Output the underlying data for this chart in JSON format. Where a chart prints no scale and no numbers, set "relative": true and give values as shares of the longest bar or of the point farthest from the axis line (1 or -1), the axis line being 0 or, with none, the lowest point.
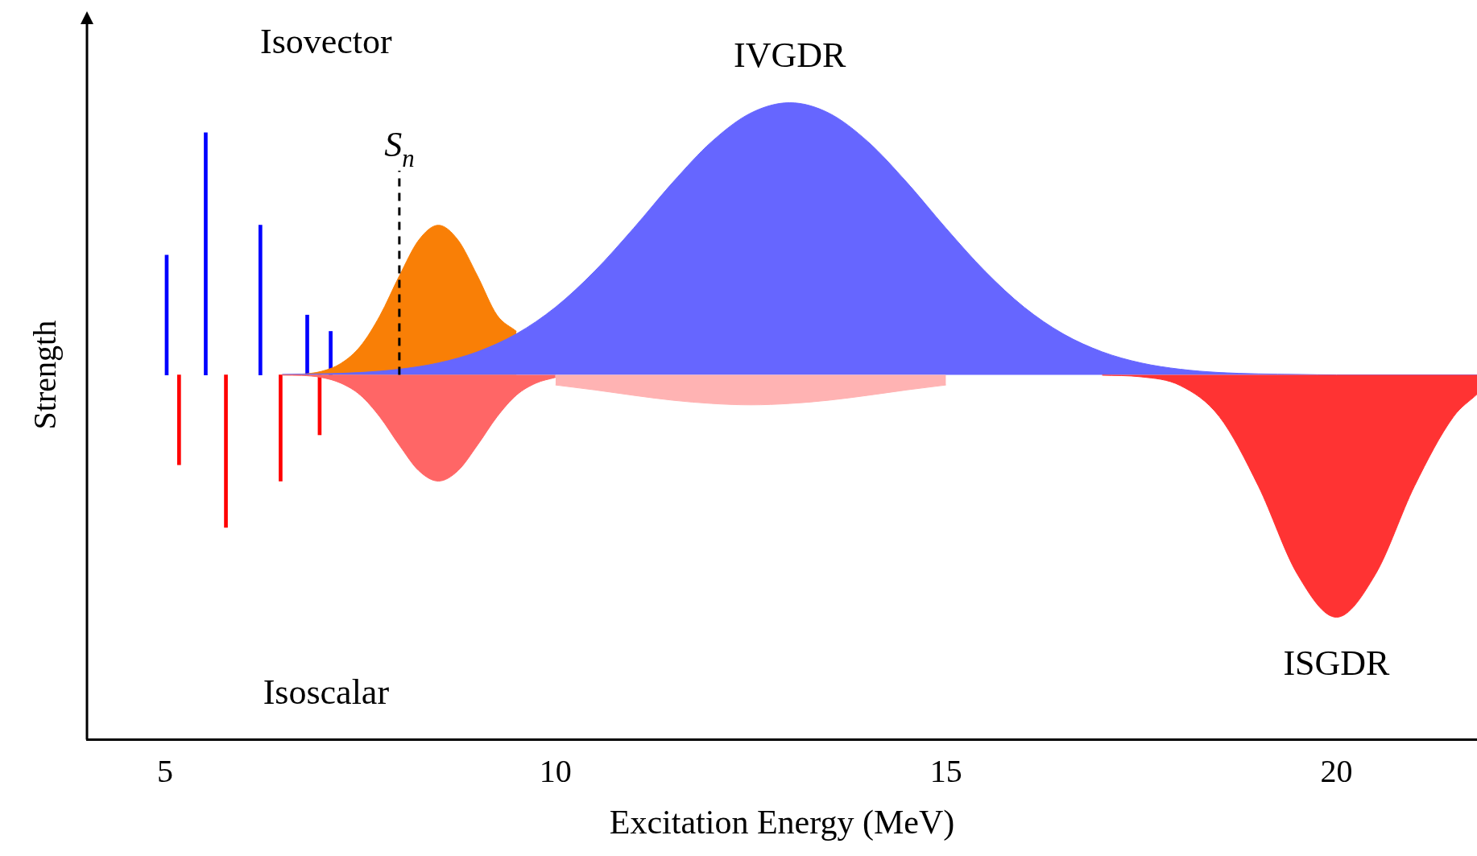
{
  "chart_data": {
    "type": "area",
    "relative": true,
    "xlabel": "Excitation Energy (MeV)",
    "ylabel": "Strength",
    "xlim": [
      4,
      21.8
    ],
    "xticks": [
      5,
      10,
      15,
      20
    ],
    "grid": false,
    "legend": false,
    "series": [
      {
        "type": "bar",
        "color": "#0000ff",
        "x": [
          5.0,
          5.5,
          6.2,
          6.8,
          7.1
        ],
        "values": [
          0.44,
          0.89,
          0.55,
          0.22,
          0.16
        ]
      },
      {
        "type": "bar",
        "color": "#ff0000",
        "x": [
          5.2,
          5.8,
          6.5,
          7.0
        ],
        "values": [
          -0.33,
          -0.56,
          -0.39,
          -0.22
        ]
      },
      {
        "type": "area",
        "color": "#f97f06",
        "x": [
          6.5,
          6.75,
          7,
          7.25,
          7.5,
          7.75,
          8,
          8.25,
          8.5,
          8.75,
          9,
          9.25,
          9.5
        ],
        "values": [
          0.001,
          0.003,
          0.013,
          0.042,
          0.105,
          0.217,
          0.364,
          0.496,
          0.55,
          0.496,
          0.364,
          0.22,
          0.16
        ]
      },
      {
        "color": "#6666ff",
        "x": [
          6.5,
          7,
          7.5,
          8,
          8.5,
          9,
          9.5,
          10,
          10.5,
          11,
          11.5,
          12,
          12.5,
          13,
          13.5,
          14,
          14.5,
          15,
          15.5,
          16,
          16.5,
          17,
          17.5,
          18,
          18.5,
          19,
          19.5,
          20,
          21.8
        ],
        "values": [
          0.002,
          0.004,
          0.009,
          0.021,
          0.044,
          0.085,
          0.151,
          0.249,
          0.381,
          0.539,
          0.707,
          0.857,
          0.962,
          1,
          0.962,
          0.857,
          0.707,
          0.539,
          0.381,
          0.249,
          0.151,
          0.085,
          0.044,
          0.021,
          0.009,
          0.004,
          0.002,
          0,
          0
        ]
      },
      {
        "color": "#ff6666",
        "x": [
          6.5,
          6.75,
          7,
          7.25,
          7.5,
          7.75,
          8,
          8.25,
          8.5,
          8.75,
          9,
          9.25,
          9.5,
          9.75,
          10
        ],
        "values": [
          -0.001,
          -0.002,
          -0.009,
          -0.03,
          -0.074,
          -0.154,
          -0.258,
          -0.352,
          -0.39,
          -0.352,
          -0.258,
          -0.154,
          -0.074,
          -0.03,
          -0.009
        ]
      },
      {
        "color": "#ffb3b3",
        "x": [
          10,
          10.5,
          11,
          11.5,
          12,
          12.5,
          13,
          13.5,
          14,
          14.5,
          15
        ],
        "values": [
          -0.037,
          -0.055,
          -0.075,
          -0.093,
          -0.105,
          -0.11,
          -0.105,
          -0.093,
          -0.075,
          -0.055,
          -0.037
        ]
      },
      {
        "color": "#ff3333",
        "x": [
          17,
          17.5,
          18,
          18.5,
          19,
          19.5,
          20,
          20.5,
          21,
          21.5,
          21.8
        ],
        "values": [
          -0.001,
          -0.007,
          -0.039,
          -0.153,
          -0.408,
          -0.732,
          -0.89,
          -0.732,
          -0.408,
          -0.153,
          -0.071
        ]
      }
    ],
    "ref_lines": [
      {
        "axis": "x",
        "value": 8,
        "label": "S$_{n}$",
        "line_style": "dashed",
        "color": "#000000"
      }
    ],
    "annotations": [
      "Isovector",
      "Isoscalar",
      {
        "text": "IVGDR",
        "x": 13,
        "y": 1
      },
      {
        "text": "ISGDR",
        "x": 20,
        "y": -0.89
      }
    ]
  }
}
